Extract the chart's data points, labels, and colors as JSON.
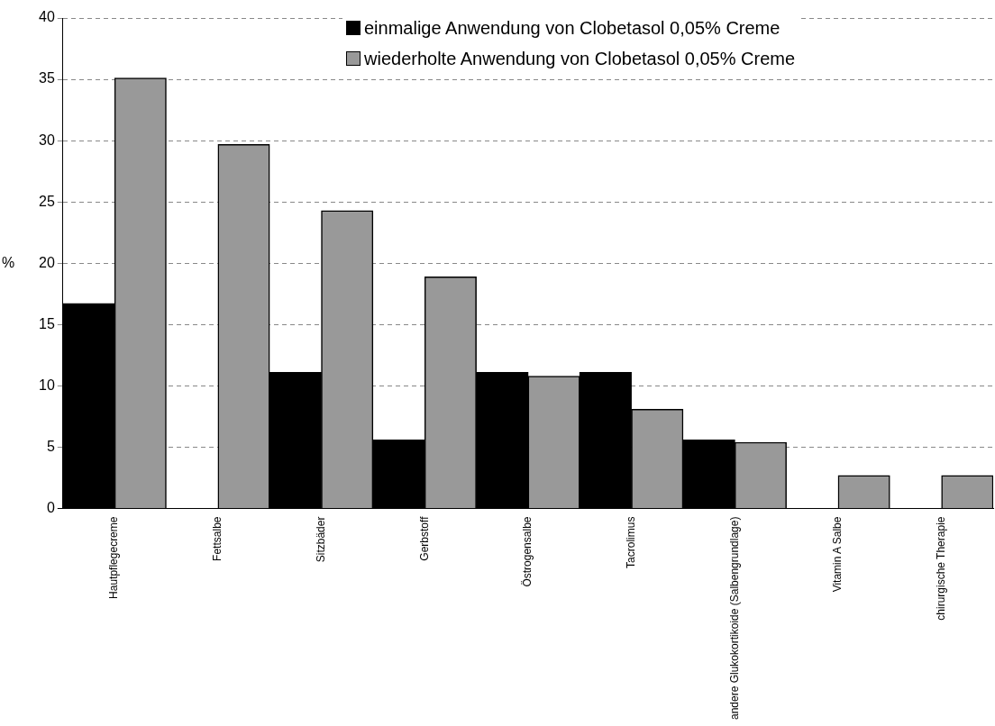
{
  "chart_data": {
    "type": "bar",
    "ylabel": "%",
    "categories": [
      "Hautpflegecreme",
      "Fettsalbe",
      "Sitzbäder",
      "Gerbstoff",
      "Östrogensalbe",
      "Tacrolimus",
      "andere Glukokortikoide (Salbengrundlage)",
      "Vitamin A Salbe",
      "chirurgische Therapie"
    ],
    "series": [
      {
        "name": "einmalige Anwendung von Clobetasol 0,05% Creme",
        "color": "#000000",
        "values": [
          16.7,
          0,
          11.1,
          5.6,
          11.1,
          11.1,
          5.6,
          0,
          0
        ]
      },
      {
        "name": "wiederholte Anwendung von Clobetasol 0,05% Creme",
        "color": "#999999",
        "values": [
          35.1,
          29.7,
          24.3,
          18.9,
          10.8,
          8.1,
          5.4,
          2.7,
          2.7
        ]
      }
    ],
    "ylim": [
      0,
      40
    ],
    "yticks": [
      0,
      5,
      10,
      15,
      20,
      25,
      30,
      35,
      40
    ],
    "grid": "y",
    "legend": "top"
  }
}
